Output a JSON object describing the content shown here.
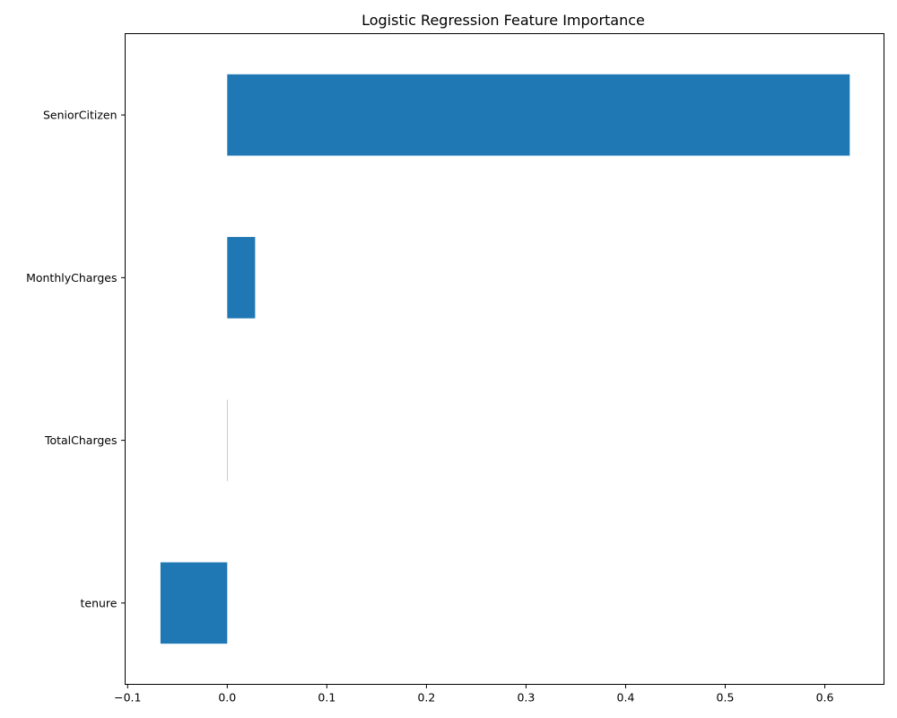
{
  "chart_data": {
    "type": "bar",
    "orientation": "horizontal",
    "title": "Logistic Regression Feature Importance",
    "xlabel": "",
    "ylabel": "",
    "categories": [
      "SeniorCitizen",
      "MonthlyCharges",
      "TotalCharges",
      "tenure"
    ],
    "values": [
      0.625,
      0.028,
      0.0003,
      -0.067
    ],
    "xlim": [
      -0.1025,
      0.6594
    ],
    "xticks": [
      -0.1,
      0.0,
      0.1,
      0.2,
      0.3,
      0.4,
      0.5,
      0.6
    ],
    "xtick_labels": [
      "−0.1",
      "0.0",
      "0.1",
      "0.2",
      "0.3",
      "0.4",
      "0.5",
      "0.6"
    ],
    "bar_color": "#1f77b4",
    "grid": false,
    "legend": "none"
  }
}
